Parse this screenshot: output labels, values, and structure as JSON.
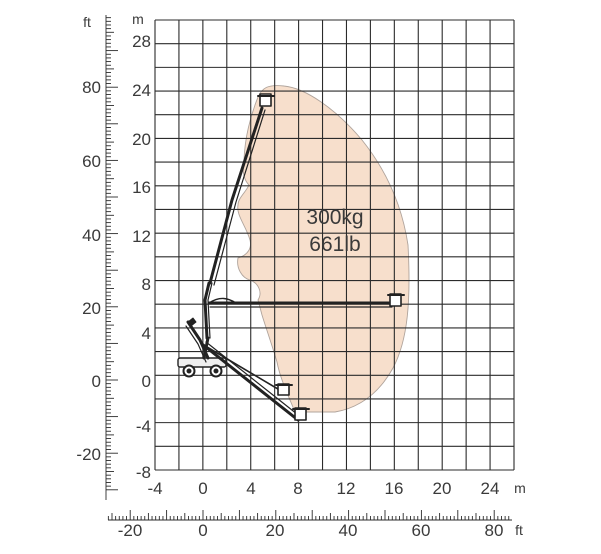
{
  "units": {
    "left_unit": "ft",
    "right_unit": "m",
    "bottom_m_unit": "m",
    "bottom_ft_unit": "ft"
  },
  "capacity": {
    "kg": "300kg",
    "lb": "661lb"
  },
  "axes": {
    "m_vertical_ticks": [
      "28",
      "24",
      "20",
      "16",
      "12",
      "8",
      "4",
      "0",
      "-4",
      "-8"
    ],
    "ft_vertical_ticks": [
      "80",
      "60",
      "40",
      "20",
      "0",
      "-20"
    ],
    "m_horizontal_ticks": [
      "-4",
      "0",
      "4",
      "8",
      "12",
      "16",
      "20",
      "24"
    ],
    "ft_horizontal_ticks": [
      "-20",
      "0",
      "20",
      "40",
      "60",
      "80"
    ]
  },
  "colors": {
    "envelope_fill": "#f7dfcc",
    "envelope_stroke": "#b0a49c",
    "grid": "#2b2b2b",
    "text": "#3a3a3a"
  }
}
